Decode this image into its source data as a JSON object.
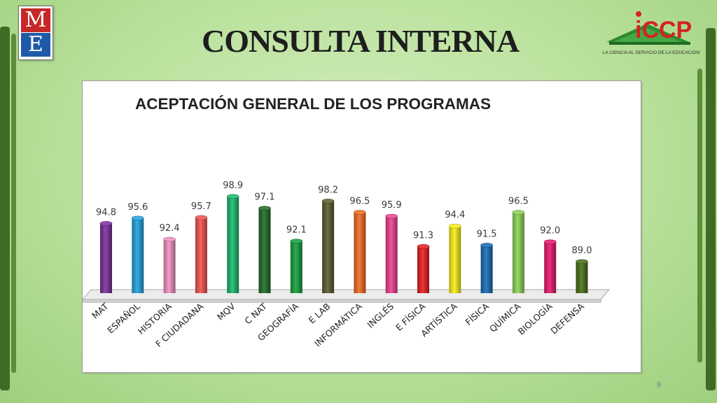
{
  "slide": {
    "title": "CONSULTA INTERNA",
    "page_number": "9"
  },
  "logo_me": {
    "letter_top": "M",
    "letter_bottom": "E"
  },
  "logo_iccp": {
    "name": "iCCP",
    "tagline": "LA CIENCIA AL SERVICIO DE LA EDUCACION"
  },
  "chart_data": {
    "type": "bar",
    "title": "ACEPTACIÓN GENERAL DE  LOS PROGRAMAS",
    "categories": [
      "MAT",
      "ESPAÑOL",
      "HISTORIA",
      "F CIUDADANA",
      "MQV",
      "C NAT",
      "GEOGRAFÍA",
      "E LAB",
      "INFORMÁTICA",
      "INGLÉS",
      "E FÍSICA",
      "ARTÍSTICA",
      "FÍSICA",
      "QUÍMICA",
      "BIOLOGÍA",
      "DEFENSA"
    ],
    "values": [
      94.8,
      95.6,
      92.4,
      95.7,
      98.9,
      97.1,
      92.1,
      98.2,
      96.5,
      95.9,
      91.3,
      94.4,
      91.5,
      96.5,
      92.0,
      89.0
    ],
    "data_labels": [
      "94.8",
      "95.6",
      "92.4",
      "95.7",
      "98.9",
      "97.1",
      "92.1",
      "98.2",
      "96.5",
      "95.9",
      "91.3",
      "94.4",
      "91.5",
      "96.5",
      "92.0",
      "89.0"
    ],
    "colors": [
      "#7b2d9c",
      "#1ea2dc",
      "#f28ec2",
      "#f0524c",
      "#17b86a",
      "#1b6b24",
      "#13a03b",
      "#5a5a2c",
      "#ef6a1e",
      "#ee3f8f",
      "#e81c1c",
      "#f7ef14",
      "#146ab6",
      "#8cd454",
      "#e9146c",
      "#466d14"
    ],
    "ylim": [
      84.2,
      100
    ],
    "grid": false,
    "legend": "none"
  }
}
